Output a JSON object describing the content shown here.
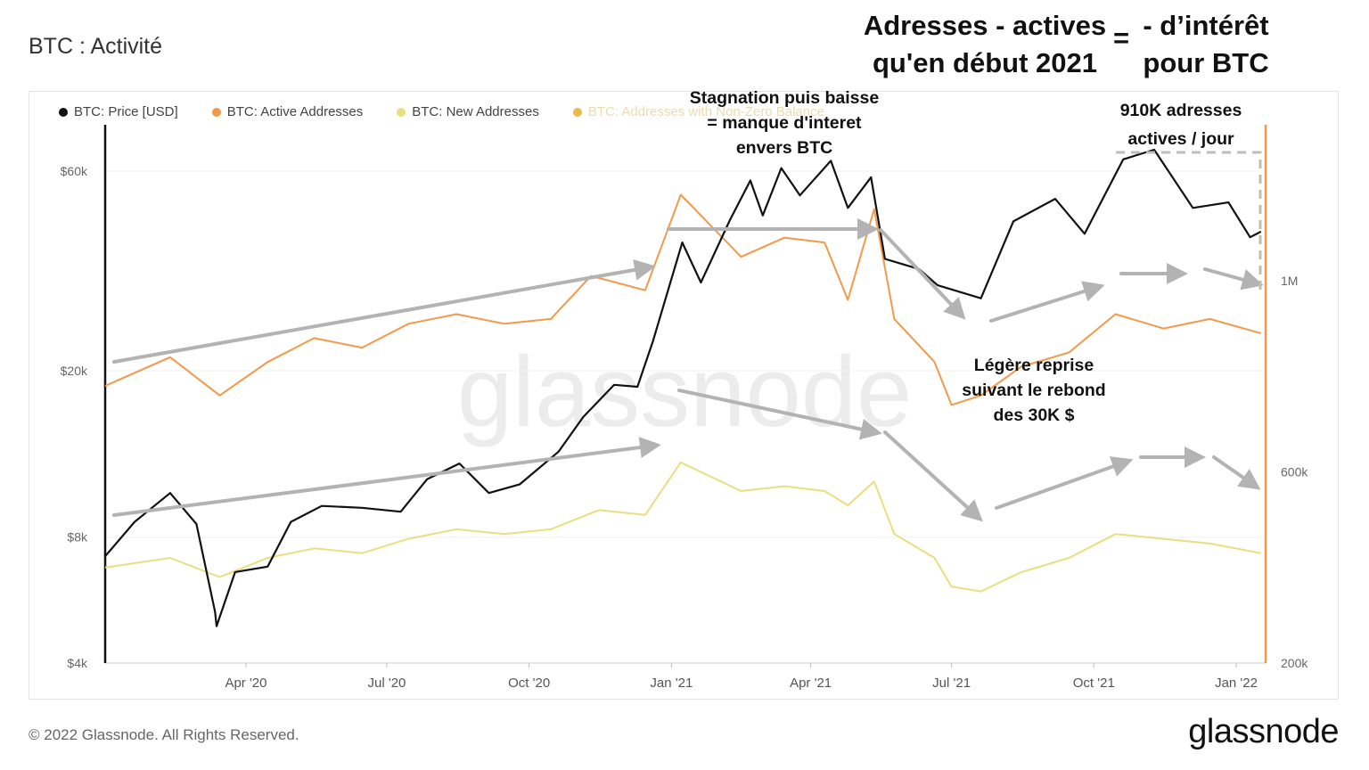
{
  "page": {
    "title": "BTC : Activité",
    "header_left_lines": [
      "Adresses - actives",
      "qu'en début 2021"
    ],
    "header_eq": "=",
    "header_right_lines": [
      "- d’intérêt",
      "pour BTC"
    ],
    "footer": "© 2022 Glassnode. All Rights Reserved.",
    "brand": "glassnode",
    "watermark": "glassnode"
  },
  "legend": [
    {
      "label": "BTC: Price [USD]",
      "color": "#111111"
    },
    {
      "label": "BTC: Active Addresses",
      "color": "#f29a4a"
    },
    {
      "label": "BTC: New Addresses",
      "color": "#e8df7e"
    },
    {
      "label": "BTC: Addresses with Non-Zero Balance",
      "color": "#e9b94a"
    }
  ],
  "annotations": {
    "stagnation_lines": [
      "Stagnation puis baisse",
      "= manque d'interet",
      "envers BTC"
    ],
    "reprise_lines": [
      "Légère reprise",
      "suivant le rebond",
      "des 30K $"
    ],
    "peak_lines": [
      "910K adresses",
      "actives / jour"
    ]
  },
  "chart_data": {
    "type": "line",
    "x_ticks": [
      "Apr '20",
      "Jul '20",
      "Oct '20",
      "Jan '21",
      "Apr '21",
      "Jul '21",
      "Oct '21",
      "Jan '22"
    ],
    "y_left_ticks": [
      "$60k",
      "$20k",
      "$8k",
      "$4k"
    ],
    "y_right_ticks": [
      "1M",
      "600k",
      "200k"
    ],
    "y_left_scale": "log",
    "series": [
      {
        "name": "BTC: Price [USD]",
        "color": "#111111",
        "points": [
          [
            "2020-01-01",
            7200
          ],
          [
            "2020-01-20",
            8700
          ],
          [
            "2020-02-12",
            10200
          ],
          [
            "2020-02-29",
            8600
          ],
          [
            "2020-03-12",
            5300
          ],
          [
            "2020-03-13",
            4900
          ],
          [
            "2020-03-25",
            6600
          ],
          [
            "2020-04-15",
            6800
          ],
          [
            "2020-04-30",
            8700
          ],
          [
            "2020-05-20",
            9500
          ],
          [
            "2020-06-15",
            9400
          ],
          [
            "2020-07-10",
            9200
          ],
          [
            "2020-07-27",
            11000
          ],
          [
            "2020-08-17",
            12000
          ],
          [
            "2020-09-05",
            10200
          ],
          [
            "2020-09-25",
            10700
          ],
          [
            "2020-10-20",
            12800
          ],
          [
            "2020-11-05",
            15500
          ],
          [
            "2020-11-25",
            18500
          ],
          [
            "2020-12-10",
            18300
          ],
          [
            "2020-12-20",
            23500
          ],
          [
            "2021-01-08",
            40500
          ],
          [
            "2021-01-20",
            32500
          ],
          [
            "2021-02-08",
            46000
          ],
          [
            "2021-02-21",
            57000
          ],
          [
            "2021-03-01",
            47000
          ],
          [
            "2021-03-13",
            61000
          ],
          [
            "2021-03-25",
            52500
          ],
          [
            "2021-04-14",
            63500
          ],
          [
            "2021-04-25",
            49000
          ],
          [
            "2021-05-10",
            58000
          ],
          [
            "2021-05-19",
            37000
          ],
          [
            "2021-06-10",
            35000
          ],
          [
            "2021-06-22",
            32000
          ],
          [
            "2021-07-20",
            29800
          ],
          [
            "2021-08-10",
            45500
          ],
          [
            "2021-09-06",
            51500
          ],
          [
            "2021-09-25",
            42500
          ],
          [
            "2021-10-20",
            64000
          ],
          [
            "2021-11-09",
            67500
          ],
          [
            "2021-12-04",
            49000
          ],
          [
            "2021-12-27",
            50500
          ],
          [
            "2022-01-10",
            41700
          ],
          [
            "2022-01-17",
            43000
          ]
        ]
      },
      {
        "name": "BTC: Active Addresses",
        "color": "#f29a4a",
        "points": [
          [
            "2020-01-01",
            780000
          ],
          [
            "2020-02-12",
            840000
          ],
          [
            "2020-03-15",
            760000
          ],
          [
            "2020-04-15",
            830000
          ],
          [
            "2020-05-15",
            880000
          ],
          [
            "2020-06-15",
            860000
          ],
          [
            "2020-07-15",
            910000
          ],
          [
            "2020-08-15",
            930000
          ],
          [
            "2020-09-15",
            910000
          ],
          [
            "2020-10-15",
            920000
          ],
          [
            "2020-11-10",
            1010000
          ],
          [
            "2020-12-15",
            980000
          ],
          [
            "2021-01-07",
            1180000
          ],
          [
            "2021-02-15",
            1050000
          ],
          [
            "2021-03-15",
            1090000
          ],
          [
            "2021-04-10",
            1080000
          ],
          [
            "2021-04-25",
            960000
          ],
          [
            "2021-05-12",
            1150000
          ],
          [
            "2021-05-25",
            920000
          ],
          [
            "2021-06-20",
            830000
          ],
          [
            "2021-07-01",
            740000
          ],
          [
            "2021-07-20",
            760000
          ],
          [
            "2021-08-15",
            820000
          ],
          [
            "2021-09-15",
            850000
          ],
          [
            "2021-10-15",
            930000
          ],
          [
            "2021-11-15",
            900000
          ],
          [
            "2021-12-15",
            920000
          ],
          [
            "2022-01-17",
            890000
          ]
        ]
      },
      {
        "name": "BTC: New Addresses",
        "color": "#e8df7e",
        "points": [
          [
            "2020-01-01",
            400000
          ],
          [
            "2020-02-12",
            420000
          ],
          [
            "2020-03-15",
            380000
          ],
          [
            "2020-04-15",
            420000
          ],
          [
            "2020-05-15",
            440000
          ],
          [
            "2020-06-15",
            430000
          ],
          [
            "2020-07-15",
            460000
          ],
          [
            "2020-08-15",
            480000
          ],
          [
            "2020-09-15",
            470000
          ],
          [
            "2020-10-15",
            480000
          ],
          [
            "2020-11-15",
            520000
          ],
          [
            "2020-12-15",
            510000
          ],
          [
            "2021-01-07",
            620000
          ],
          [
            "2021-02-15",
            560000
          ],
          [
            "2021-03-15",
            570000
          ],
          [
            "2021-04-10",
            560000
          ],
          [
            "2021-04-25",
            530000
          ],
          [
            "2021-05-12",
            580000
          ],
          [
            "2021-05-25",
            470000
          ],
          [
            "2021-06-20",
            420000
          ],
          [
            "2021-07-01",
            360000
          ],
          [
            "2021-07-20",
            350000
          ],
          [
            "2021-08-15",
            390000
          ],
          [
            "2021-09-15",
            420000
          ],
          [
            "2021-10-15",
            470000
          ],
          [
            "2021-11-15",
            460000
          ],
          [
            "2021-12-15",
            450000
          ],
          [
            "2022-01-17",
            430000
          ]
        ]
      }
    ],
    "legend_position": "top-left"
  }
}
